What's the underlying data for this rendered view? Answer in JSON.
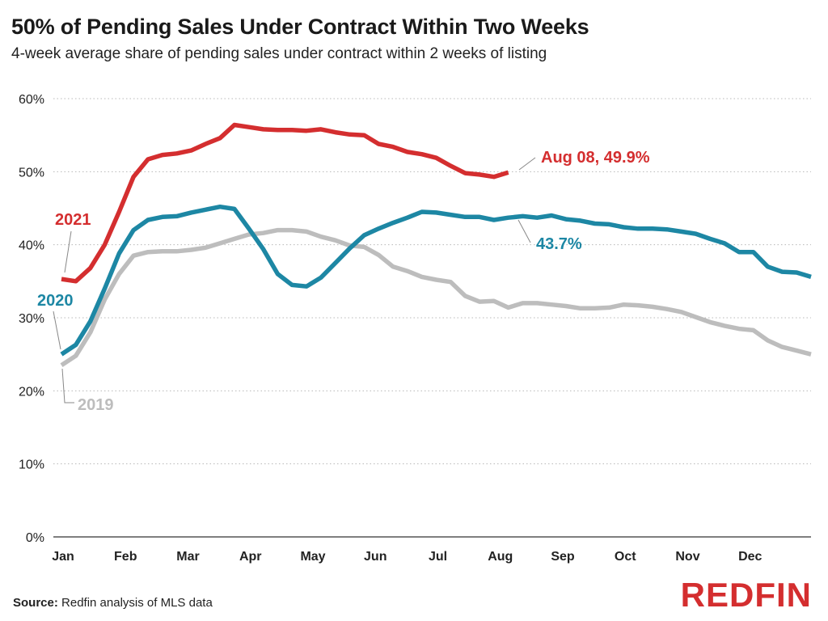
{
  "colors": {
    "y2021": "#d42e2f",
    "y2020": "#1d87a4",
    "y2019": "#bdbdbd",
    "grid": "#b8b8b8"
  },
  "chart_data": {
    "type": "line",
    "title": "50% of Pending Sales Under Contract Within Two Weeks",
    "subtitle": "4-week average share of pending sales under contract within 2 weeks of listing",
    "xlabel": "",
    "ylabel": "",
    "ylim": [
      0,
      60
    ],
    "y_ticks": [
      "0%",
      "10%",
      "20%",
      "30%",
      "40%",
      "50%",
      "60%"
    ],
    "x_ticks": [
      "Jan",
      "Feb",
      "Mar",
      "Apr",
      "May",
      "Jun",
      "Jul",
      "Aug",
      "Sep",
      "Oct",
      "Nov",
      "Dec"
    ],
    "grid": true,
    "series": [
      {
        "name": "2019",
        "color": "#bdbdbd",
        "values": [
          23.5,
          24.8,
          28.0,
          32.5,
          36.0,
          38.5,
          39.0,
          39.1,
          39.1,
          39.3,
          39.6,
          40.2,
          40.8,
          41.4,
          41.6,
          42.0,
          42.0,
          41.8,
          41.1,
          40.6,
          39.9,
          39.7,
          38.6,
          37.0,
          36.4,
          35.6,
          35.2,
          34.9,
          33.0,
          32.2,
          32.3,
          31.4,
          32.0,
          32.0,
          31.8,
          31.6,
          31.3,
          31.3,
          31.4,
          31.8,
          31.7,
          31.5,
          31.2,
          30.8,
          30.1,
          29.4,
          28.9,
          28.5,
          28.3,
          26.9,
          26.0,
          25.5,
          25.0
        ]
      },
      {
        "name": "2020",
        "color": "#1d87a4",
        "values": [
          25.0,
          26.3,
          29.5,
          34.0,
          38.8,
          42.0,
          43.4,
          43.8,
          43.9,
          44.4,
          44.8,
          45.2,
          44.9,
          42.2,
          39.4,
          36.0,
          34.5,
          34.3,
          35.5,
          37.5,
          39.5,
          41.3,
          42.2,
          43.0,
          43.7,
          44.5,
          44.4,
          44.1,
          43.8,
          43.8,
          43.4,
          43.7,
          43.9,
          43.7,
          44.0,
          43.5,
          43.3,
          42.9,
          42.8,
          42.4,
          42.2,
          42.2,
          42.1,
          41.8,
          41.5,
          40.8,
          40.2,
          39.0,
          39.0,
          37.0,
          36.3,
          36.2,
          35.6
        ]
      },
      {
        "name": "2021",
        "color": "#d42e2f",
        "values": [
          35.3,
          35.0,
          36.8,
          40.0,
          44.5,
          49.3,
          51.7,
          52.3,
          52.5,
          52.9,
          53.8,
          54.6,
          56.4,
          56.1,
          55.8,
          55.7,
          55.7,
          55.6,
          55.8,
          55.4,
          55.1,
          55.0,
          53.8,
          53.4,
          52.7,
          52.4,
          51.9,
          50.8,
          49.8,
          49.6,
          49.3,
          49.9
        ]
      }
    ],
    "annotations": {
      "label_2021": "2021",
      "label_2020": "2020",
      "label_2019": "2019",
      "end_2021": "Aug 08, 49.9%",
      "end_2020": "43.7%"
    }
  },
  "source_label": "Source:",
  "source_text": "Redfin analysis of MLS data",
  "logo_text": "REDFIN"
}
